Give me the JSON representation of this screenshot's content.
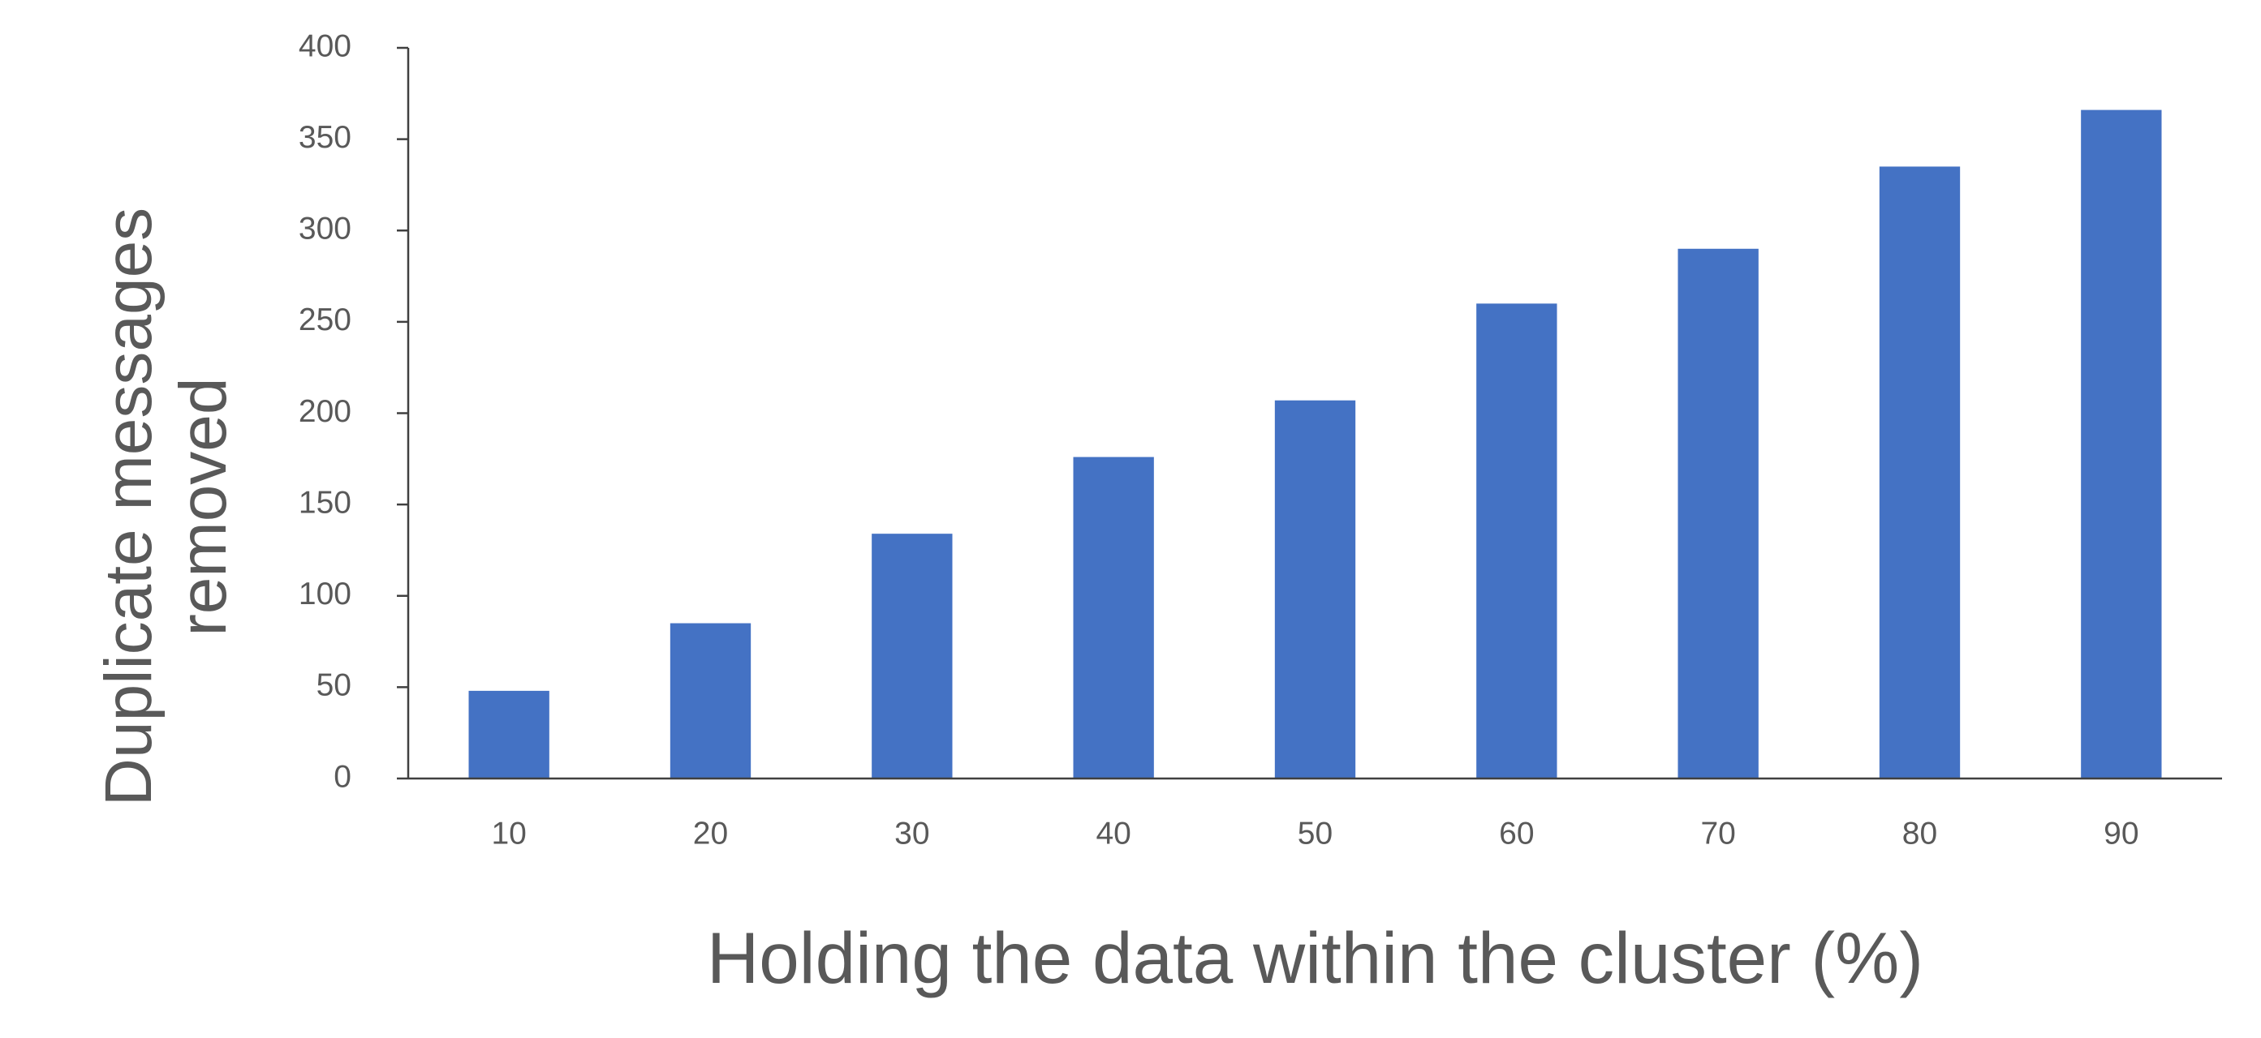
{
  "chart_data": {
    "type": "bar",
    "x_label": "Holding the data within the cluster (%)",
    "y_label": "Duplicate messages removed",
    "categories": [
      "10",
      "20",
      "30",
      "40",
      "50",
      "60",
      "70",
      "80",
      "90"
    ],
    "values": [
      48,
      85,
      134,
      176,
      207,
      260,
      290,
      335,
      366
    ],
    "color": "#4472c4",
    "ylim": [
      0,
      400
    ],
    "yticks": [
      0,
      50,
      100,
      150,
      200,
      250,
      300,
      350,
      400
    ],
    "grid": false
  }
}
